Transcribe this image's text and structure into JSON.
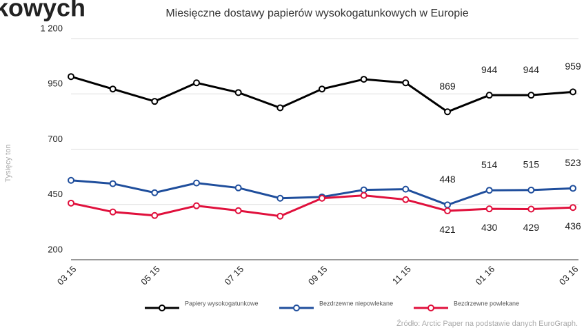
{
  "header_fragment": "kowych",
  "source": "Źródło: Arctic Paper na podstawie danych EuroGraph.",
  "chart_data": {
    "type": "line",
    "title": "Miesięczne dostawy papierów wysokogatunkowych w Europie",
    "y_label": "Tysięcy ton",
    "categories": [
      "03 15",
      null,
      "05 15",
      null,
      "07 15",
      null,
      "09 15",
      null,
      "11 15",
      null,
      "01 16",
      null,
      "03 16"
    ],
    "ylim": [
      200,
      1200
    ],
    "yticks": [
      200,
      450,
      700,
      950,
      {
        "value": 1200,
        "label": "1 200"
      }
    ],
    "grid": true,
    "series": [
      {
        "name": "Papiery wysokogatunkowe",
        "color": "#000000",
        "label_side": "above",
        "values": [
          1028,
          972,
          916,
          1000,
          956,
          887,
          972,
          1016,
          1000,
          869,
          944,
          944,
          959
        ],
        "value_labels": [
          null,
          null,
          null,
          null,
          null,
          null,
          null,
          null,
          null,
          "869",
          "944",
          "944",
          "959"
        ]
      },
      {
        "name": "Bezdrzewne niepowlekane",
        "color": "#1f4e9c",
        "label_side": "above",
        "values": [
          559,
          544,
          503,
          547,
          525,
          478,
          484,
          516,
          519,
          448,
          514,
          515,
          523
        ],
        "value_labels": [
          null,
          null,
          null,
          null,
          null,
          null,
          null,
          null,
          null,
          "448",
          "514",
          "515",
          "523"
        ]
      },
      {
        "name": "Bezdrzewne powlekane",
        "color": "#e0103c",
        "label_side": "below",
        "values": [
          456,
          416,
          400,
          444,
          422,
          397,
          478,
          491,
          472,
          421,
          430,
          429,
          436
        ],
        "value_labels": [
          null,
          null,
          null,
          null,
          null,
          null,
          null,
          null,
          null,
          "421",
          "430",
          "429",
          "436"
        ]
      }
    ]
  }
}
